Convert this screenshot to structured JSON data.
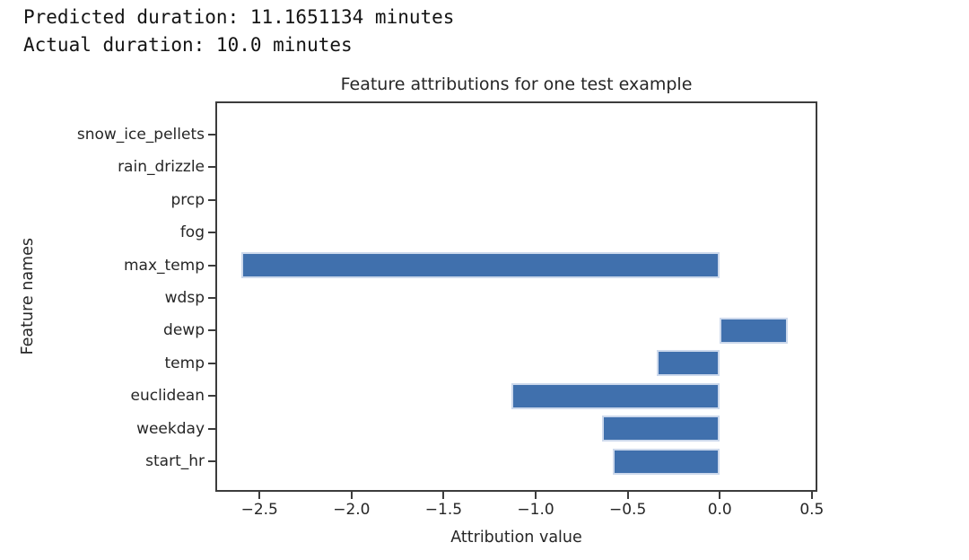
{
  "console": {
    "line1": "Predicted duration: 11.1651134 minutes",
    "line2": "Actual duration: 10.0 minutes"
  },
  "chart_data": {
    "type": "bar",
    "orientation": "horizontal",
    "title": "Feature attributions for one test example",
    "xlabel": "Attribution value",
    "ylabel": "Feature names",
    "categories": [
      "snow_ice_pellets",
      "rain_drizzle",
      "prcp",
      "fog",
      "max_temp",
      "wdsp",
      "dewp",
      "temp",
      "euclidean",
      "weekday",
      "start_hr"
    ],
    "values": [
      0,
      0,
      0,
      0,
      -2.6,
      0,
      0.37,
      -0.34,
      -1.13,
      -0.64,
      -0.58
    ],
    "xlim": [
      -2.74,
      0.53
    ],
    "xticks": [
      -2.5,
      -2.0,
      -1.5,
      -1.0,
      -0.5,
      0.0,
      0.5
    ],
    "xtick_labels": [
      "−2.5",
      "−2.0",
      "−1.5",
      "−1.0",
      "−0.5",
      "0.0",
      "0.5"
    ],
    "grid": false,
    "legend": null,
    "bar_color": "#4070ad",
    "bar_edge_color": "#cdd9ec",
    "spine_color": "#3c3c3c"
  }
}
